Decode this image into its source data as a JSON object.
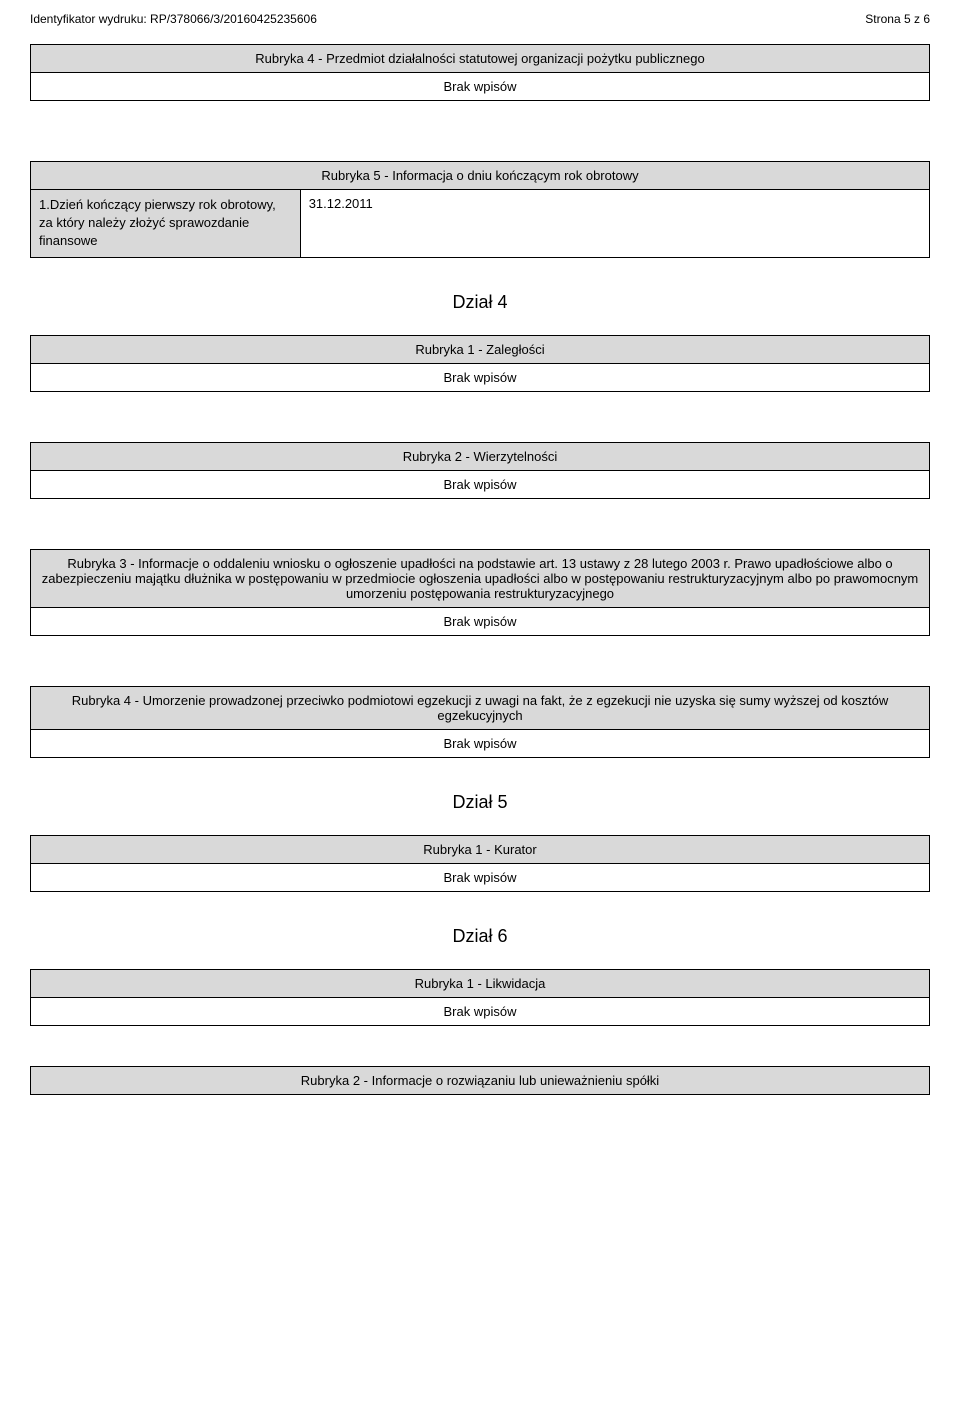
{
  "header": {
    "identifier_label": "Identyfikator wydruku: RP/378066/3/20160425235606",
    "page_label": "Strona 5 z 6"
  },
  "rubryka4_top": {
    "title": "Rubryka 4 - Przedmiot działalności statutowej organizacji pożytku publicznego",
    "content": "Brak wpisów"
  },
  "rubryka5": {
    "title": "Rubryka 5 - Informacja o dniu kończącym rok obrotowy",
    "row_label": "1.Dzień kończący pierwszy rok obrotowy, za który należy złożyć sprawozdanie finansowe",
    "row_value": "31.12.2011"
  },
  "dzial4": {
    "heading": "Dział 4",
    "r1": {
      "title": "Rubryka 1 - Zaległości",
      "content": "Brak wpisów"
    },
    "r2": {
      "title": "Rubryka 2 - Wierzytelności",
      "content": "Brak wpisów"
    },
    "r3": {
      "title": "Rubryka 3 - Informacje o oddaleniu wniosku o ogłoszenie upadłości na podstawie art. 13 ustawy z 28 lutego 2003 r. Prawo upadłościowe albo o zabezpieczeniu majątku dłużnika w postępowaniu w przedmiocie ogłoszenia upadłości albo w postępowaniu restrukturyzacyjnym albo po prawomocnym umorzeniu postępowania restrukturyzacyjnego",
      "content": "Brak wpisów"
    },
    "r4": {
      "title": "Rubryka 4 - Umorzenie prowadzonej przeciwko podmiotowi egzekucji z uwagi na fakt, że z egzekucji nie uzyska się sumy wyższej od kosztów egzekucyjnych",
      "content": "Brak wpisów"
    }
  },
  "dzial5": {
    "heading": "Dział 5",
    "r1": {
      "title": "Rubryka 1 - Kurator",
      "content": "Brak wpisów"
    }
  },
  "dzial6": {
    "heading": "Dział 6",
    "r1": {
      "title": "Rubryka 1 - Likwidacja",
      "content": "Brak wpisów"
    },
    "r2": {
      "title": "Rubryka 2 - Informacje o rozwiązaniu lub unieważnieniu spółki"
    }
  }
}
